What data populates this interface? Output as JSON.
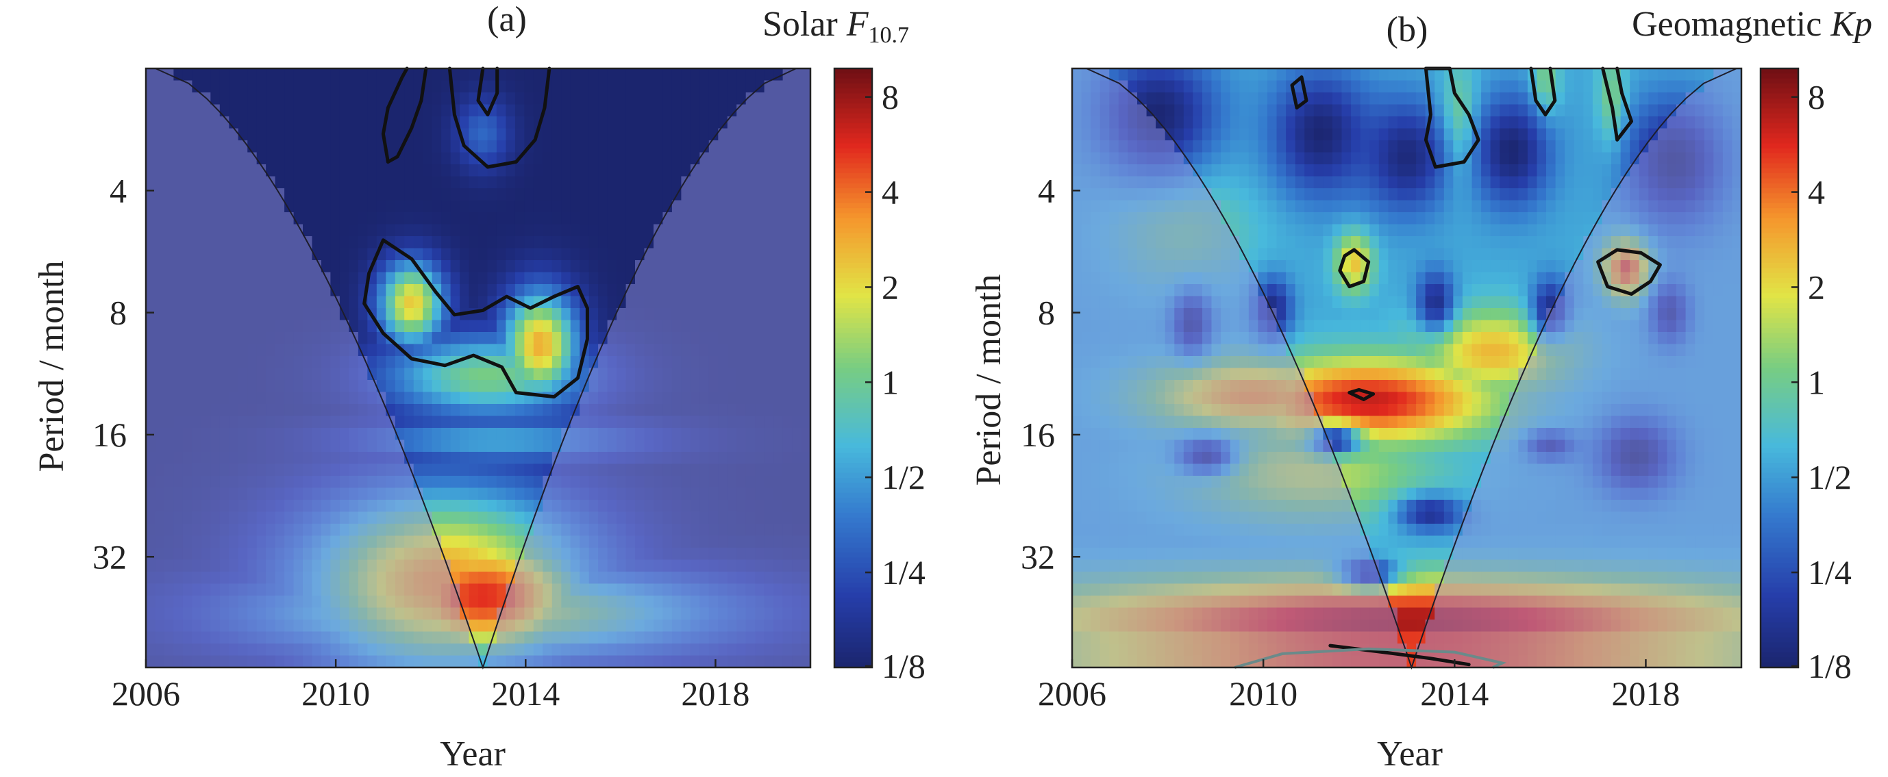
{
  "chart_data": [
    {
      "type": "heatmap",
      "panel": "(a)",
      "title_main": "Solar ",
      "title_symbol": "F",
      "title_subscript": "10.7",
      "xlabel": "Year",
      "ylabel": "Period / month",
      "x_ticks": [
        "2006",
        "2010",
        "2014",
        "2018"
      ],
      "x_tick_values": [
        2006,
        2010,
        2014,
        2018
      ],
      "xlim": [
        2006,
        2020
      ],
      "y_ticks": [
        "4",
        "8",
        "16",
        "32"
      ],
      "y_tick_values": [
        4,
        8,
        16,
        32
      ],
      "ylim": [
        2,
        60
      ],
      "y_scale": "log2",
      "y_direction": "downward-increasing",
      "colorbar_labels": [
        "8",
        "4",
        "2",
        "1",
        "1/2",
        "1/4",
        "1/8"
      ],
      "colorbar_values": [
        8,
        4,
        2,
        1,
        0.5,
        0.25,
        0.125
      ],
      "background_level": 0.125,
      "cone_of_influence": {
        "apex_year": 2013.1,
        "apex_period": 60,
        "top_left_year": 2006.2,
        "top_right_year": 2019.7
      },
      "hotspots": [
        {
          "year": 2013.1,
          "period": 40,
          "value": 5.5,
          "year_spread": 2.3,
          "period_spread_octaves": 0.55
        },
        {
          "year": 2012.3,
          "period": 37,
          "value": 3.2,
          "year_spread": 3.2,
          "period_spread_octaves": 0.8
        },
        {
          "year": 2013.2,
          "period": 44,
          "value": 1.6,
          "year_spread": 5.2,
          "period_spread_octaves": 0.4
        },
        {
          "year": 2011.6,
          "period": 7.6,
          "value": 2.3,
          "year_spread": 0.7,
          "period_spread_octaves": 0.35
        },
        {
          "year": 2014.3,
          "period": 9.6,
          "value": 2.8,
          "year_spread": 0.8,
          "period_spread_octaves": 0.45
        },
        {
          "year": 2013.2,
          "period": 11.5,
          "value": 1.1,
          "year_spread": 2.3,
          "period_spread_octaves": 0.35
        },
        {
          "year": 2013.4,
          "period": 16.5,
          "value": 0.55,
          "year_spread": 3.3,
          "period_spread_octaves": 0.2
        },
        {
          "year": 2013.1,
          "period": 2.9,
          "value": 0.32,
          "year_spread": 0.6,
          "period_spread_octaves": 0.3
        }
      ],
      "contours": [
        [
          [
            2011.0,
            5.3
          ],
          [
            2010.7,
            6.4
          ],
          [
            2010.6,
            7.6
          ],
          [
            2011.0,
            9.0
          ],
          [
            2011.6,
            10.4
          ],
          [
            2012.3,
            10.8
          ],
          [
            2012.9,
            10.2
          ],
          [
            2013.5,
            10.9
          ],
          [
            2013.8,
            12.6
          ],
          [
            2014.6,
            12.9
          ],
          [
            2015.1,
            11.6
          ],
          [
            2015.3,
            9.3
          ],
          [
            2015.3,
            7.8
          ],
          [
            2015.1,
            6.9
          ],
          [
            2014.6,
            7.3
          ],
          [
            2014.1,
            7.8
          ],
          [
            2013.6,
            7.3
          ],
          [
            2013.1,
            7.9
          ],
          [
            2012.5,
            8.1
          ],
          [
            2012.1,
            7.1
          ],
          [
            2011.6,
            5.9
          ],
          [
            2011.0,
            5.3
          ]
        ],
        [
          [
            2011.1,
            3.4
          ],
          [
            2011.0,
            2.9
          ],
          [
            2011.1,
            2.5
          ],
          [
            2011.4,
            2.1
          ],
          [
            2011.5,
            2.0
          ]
        ],
        [
          [
            2011.9,
            2.0
          ],
          [
            2011.8,
            2.4
          ],
          [
            2011.6,
            2.8
          ],
          [
            2011.3,
            3.3
          ],
          [
            2011.1,
            3.4
          ]
        ],
        [
          [
            2012.4,
            2.0
          ],
          [
            2012.5,
            2.6
          ],
          [
            2012.7,
            3.1
          ],
          [
            2013.2,
            3.5
          ],
          [
            2013.8,
            3.4
          ],
          [
            2014.2,
            3.0
          ],
          [
            2014.4,
            2.5
          ],
          [
            2014.5,
            2.0
          ]
        ],
        [
          [
            2013.1,
            2.0
          ],
          [
            2013.0,
            2.4
          ],
          [
            2013.2,
            2.6
          ],
          [
            2013.4,
            2.3
          ],
          [
            2013.4,
            2.0
          ]
        ]
      ]
    },
    {
      "type": "heatmap",
      "panel": "(b)",
      "title_main": "Geomagnetic ",
      "title_symbol": "Kp",
      "title_subscript": "",
      "xlabel": "Year",
      "ylabel": "Period / month",
      "x_ticks": [
        "2006",
        "2010",
        "2014",
        "2018"
      ],
      "x_tick_values": [
        2006,
        2010,
        2014,
        2018
      ],
      "xlim": [
        2006,
        2020
      ],
      "y_ticks": [
        "4",
        "8",
        "16",
        "32"
      ],
      "y_tick_values": [
        4,
        8,
        16,
        32
      ],
      "ylim": [
        2,
        60
      ],
      "y_scale": "log2",
      "y_direction": "downward-increasing",
      "colorbar_labels": [
        "8",
        "4",
        "2",
        "1",
        "1/2",
        "1/4",
        "1/8"
      ],
      "colorbar_values": [
        8,
        4,
        2,
        1,
        0.5,
        0.25,
        0.125
      ],
      "background_level": 0.55,
      "cone_of_influence": {
        "apex_year": 2013.1,
        "apex_period": 60,
        "top_left_year": 2006.3,
        "top_right_year": 2019.9
      },
      "hotspots": [
        {
          "year": 2012.2,
          "period": 13.2,
          "value": 6.5,
          "year_spread": 2.6,
          "period_spread_octaves": 0.35
        },
        {
          "year": 2009.8,
          "period": 12.8,
          "value": 3.2,
          "year_spread": 2.2,
          "period_spread_octaves": 0.3
        },
        {
          "year": 2014.8,
          "period": 10.0,
          "value": 2.6,
          "year_spread": 1.6,
          "period_spread_octaves": 0.35
        },
        {
          "year": 2013.0,
          "period": 46,
          "value": 7.5,
          "year_spread": 8.0,
          "period_spread_octaves": 0.35
        },
        {
          "year": 2013.0,
          "period": 56,
          "value": 5.5,
          "year_spread": 8.0,
          "period_spread_octaves": 0.25
        },
        {
          "year": 2017.6,
          "period": 6.2,
          "value": 5.0,
          "year_spread": 0.5,
          "period_spread_octaves": 0.25
        },
        {
          "year": 2011.9,
          "period": 6.0,
          "value": 2.5,
          "year_spread": 0.4,
          "period_spread_octaves": 0.25
        },
        {
          "year": 2014.1,
          "period": 2.8,
          "value": 1.5,
          "year_spread": 0.4,
          "period_spread_octaves": 0.45
        },
        {
          "year": 2015.9,
          "period": 2.2,
          "value": 1.3,
          "year_spread": 0.3,
          "period_spread_octaves": 0.3
        },
        {
          "year": 2017.3,
          "period": 2.4,
          "value": 1.2,
          "year_spread": 0.3,
          "period_spread_octaves": 0.4
        },
        {
          "year": 2011.0,
          "period": 20,
          "value": 1.6,
          "year_spread": 2.6,
          "period_spread_octaves": 0.4
        },
        {
          "year": 2008.3,
          "period": 5.0,
          "value": 1.0,
          "year_spread": 1.5,
          "period_spread_octaves": 0.5
        }
      ],
      "cold_spots": [
        {
          "year": 2007.8,
          "period": 2.6,
          "value": 0.13,
          "year_spread": 1.2,
          "period_spread_octaves": 0.5
        },
        {
          "year": 2011.2,
          "period": 2.9,
          "value": 0.13,
          "year_spread": 1.0,
          "period_spread_octaves": 0.5
        },
        {
          "year": 2013.0,
          "period": 3.3,
          "value": 0.14,
          "year_spread": 0.9,
          "period_spread_octaves": 0.45
        },
        {
          "year": 2015.2,
          "period": 3.2,
          "value": 0.13,
          "year_spread": 0.8,
          "period_spread_octaves": 0.45
        },
        {
          "year": 2018.6,
          "period": 3.4,
          "value": 0.13,
          "year_spread": 1.0,
          "period_spread_octaves": 0.5
        },
        {
          "year": 2008.5,
          "period": 8.5,
          "value": 0.15,
          "year_spread": 0.4,
          "period_spread_octaves": 0.25
        },
        {
          "year": 2010.2,
          "period": 7.8,
          "value": 0.15,
          "year_spread": 0.4,
          "period_spread_octaves": 0.25
        },
        {
          "year": 2013.6,
          "period": 7.5,
          "value": 0.16,
          "year_spread": 0.4,
          "period_spread_octaves": 0.25
        },
        {
          "year": 2016.0,
          "period": 7.8,
          "value": 0.16,
          "year_spread": 0.4,
          "period_spread_octaves": 0.25
        },
        {
          "year": 2018.5,
          "period": 8.0,
          "value": 0.16,
          "year_spread": 0.4,
          "period_spread_octaves": 0.25
        },
        {
          "year": 2008.8,
          "period": 18,
          "value": 0.16,
          "year_spread": 0.6,
          "period_spread_octaves": 0.15
        },
        {
          "year": 2011.5,
          "period": 16.5,
          "value": 0.18,
          "year_spread": 0.5,
          "period_spread_octaves": 0.12
        },
        {
          "year": 2016.0,
          "period": 17,
          "value": 0.18,
          "year_spread": 0.5,
          "period_spread_octaves": 0.12
        },
        {
          "year": 2017.8,
          "period": 18,
          "value": 0.13,
          "year_spread": 0.8,
          "period_spread_octaves": 0.3
        },
        {
          "year": 2013.5,
          "period": 25,
          "value": 0.17,
          "year_spread": 0.7,
          "period_spread_octaves": 0.15
        },
        {
          "year": 2012.2,
          "period": 35,
          "value": 0.17,
          "year_spread": 0.6,
          "period_spread_octaves": 0.12
        }
      ],
      "contours": [
        [
          [
            2011.7,
            5.8
          ],
          [
            2011.6,
            6.3
          ],
          [
            2011.8,
            6.9
          ],
          [
            2012.1,
            6.7
          ],
          [
            2012.2,
            6.0
          ],
          [
            2011.9,
            5.6
          ],
          [
            2011.7,
            5.8
          ]
        ],
        [
          [
            2017.0,
            6.0
          ],
          [
            2017.2,
            6.9
          ],
          [
            2017.7,
            7.2
          ],
          [
            2018.1,
            6.7
          ],
          [
            2018.3,
            6.1
          ],
          [
            2017.9,
            5.7
          ],
          [
            2017.4,
            5.6
          ],
          [
            2017.0,
            6.0
          ]
        ],
        [
          [
            2013.4,
            2.0
          ],
          [
            2013.5,
            2.6
          ],
          [
            2013.4,
            3.0
          ],
          [
            2013.6,
            3.5
          ],
          [
            2014.2,
            3.4
          ],
          [
            2014.5,
            3.0
          ],
          [
            2014.3,
            2.6
          ],
          [
            2014.0,
            2.3
          ],
          [
            2013.9,
            2.0
          ],
          [
            2013.4,
            2.0
          ]
        ],
        [
          [
            2011.8,
            12.6
          ],
          [
            2012.1,
            13.1
          ],
          [
            2012.3,
            12.7
          ],
          [
            2012.0,
            12.4
          ],
          [
            2011.8,
            12.6
          ]
        ],
        [
          [
            2017.1,
            2.0
          ],
          [
            2017.3,
            2.5
          ],
          [
            2017.4,
            3.0
          ],
          [
            2017.7,
            2.7
          ],
          [
            2017.5,
            2.3
          ],
          [
            2017.4,
            2.0
          ]
        ],
        [
          [
            2015.6,
            2.0
          ],
          [
            2015.7,
            2.4
          ],
          [
            2015.9,
            2.6
          ],
          [
            2016.1,
            2.4
          ],
          [
            2016.0,
            2.0
          ]
        ],
        [
          [
            2010.6,
            2.2
          ],
          [
            2010.7,
            2.5
          ],
          [
            2010.9,
            2.4
          ],
          [
            2010.8,
            2.1
          ],
          [
            2010.6,
            2.2
          ]
        ],
        [
          [
            2011.4,
            53
          ],
          [
            2012.5,
            55
          ],
          [
            2013.5,
            57
          ],
          [
            2014.3,
            59
          ]
        ]
      ],
      "grey_contours": [
        [
          [
            2009.4,
            60
          ],
          [
            2010.4,
            55.5
          ],
          [
            2012.2,
            54
          ],
          [
            2014.0,
            55
          ],
          [
            2015.0,
            58.5
          ],
          [
            2014.8,
            60
          ]
        ]
      ]
    }
  ]
}
